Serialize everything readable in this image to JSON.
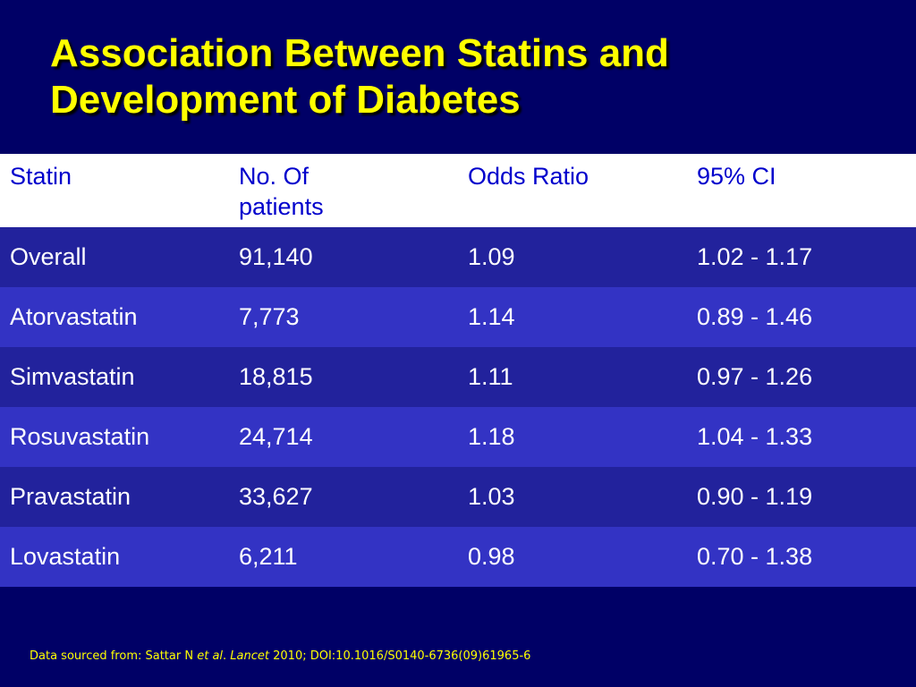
{
  "slide": {
    "title_line1": "Association Between Statins and",
    "title_line2": "Development of Diabetes",
    "colors": {
      "background": "#000066",
      "title": "#ffff00",
      "header_background": "#ffffff",
      "header_text": "#0000cc",
      "row_dark": "#22229c",
      "row_light": "#3333c4",
      "cell_text": "#ffffff",
      "footnote": "#ffff00"
    }
  },
  "table": {
    "headers": {
      "statin": "Statin",
      "patients_line1": "No. Of",
      "patients_line2": "patients",
      "odds_ratio": "Odds Ratio",
      "ci": "95% CI"
    },
    "rows": [
      {
        "statin": "Overall",
        "patients": "91,140",
        "odds_ratio": "1.09",
        "ci": "1.02 - 1.17"
      },
      {
        "statin": "Atorvastatin",
        "patients": "7,773",
        "odds_ratio": "1.14",
        "ci": "0.89 - 1.46"
      },
      {
        "statin": "Simvastatin",
        "patients": "18,815",
        "odds_ratio": "1.11",
        "ci": "0.97 - 1.26"
      },
      {
        "statin": "Rosuvastatin",
        "patients": "24,714",
        "odds_ratio": "1.18",
        "ci": "1.04 - 1.33"
      },
      {
        "statin": "Pravastatin",
        "patients": "33,627",
        "odds_ratio": "1.03",
        "ci": "0.90 - 1.19"
      },
      {
        "statin": "Lovastatin",
        "patients": "6,211",
        "odds_ratio": "0.98",
        "ci": "0.70 - 1.38"
      }
    ]
  },
  "footnote": {
    "prefix": "Data sourced from: Sattar N ",
    "et_al": "et al",
    "dot": ". ",
    "journal": "Lancet",
    "suffix": " 2010; DOI:10.1016/S0140-6736(09)61965-6"
  }
}
